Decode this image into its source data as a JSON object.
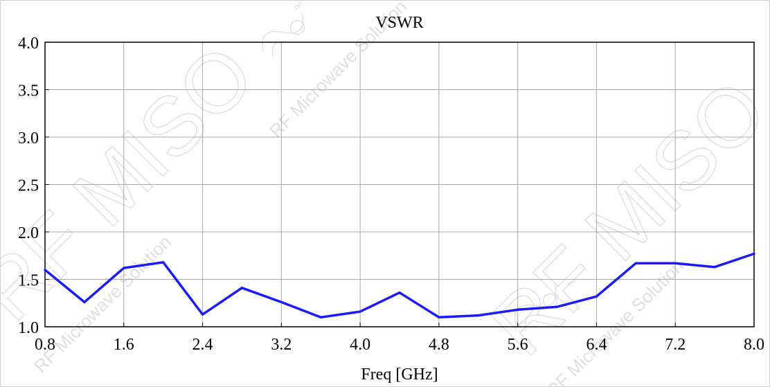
{
  "chart_data": {
    "type": "line",
    "title": "VSWR",
    "xlabel": "Freq [GHz]",
    "ylabel": "",
    "xlim": [
      0.8,
      8.0
    ],
    "ylim": [
      1.0,
      4.0
    ],
    "xticks": [
      "0.8",
      "1.6",
      "2.4",
      "3.2",
      "4.0",
      "4.8",
      "5.6",
      "6.4",
      "7.2",
      "8.0"
    ],
    "yticks": [
      "1.0",
      "1.5",
      "2.0",
      "2.5",
      "3.0",
      "3.5",
      "4.0"
    ],
    "grid": true,
    "series": [
      {
        "color": "#1a1aff",
        "x": [
          0.8,
          1.2,
          1.6,
          2.0,
          2.4,
          2.8,
          3.2,
          3.6,
          4.0,
          4.4,
          4.8,
          5.2,
          5.6,
          6.0,
          6.4,
          6.8,
          7.2,
          7.6,
          8.0
        ],
        "y": [
          1.6,
          1.26,
          1.62,
          1.68,
          1.13,
          1.41,
          1.26,
          1.1,
          1.16,
          1.36,
          1.1,
          1.12,
          1.18,
          1.21,
          1.32,
          1.67,
          1.67,
          1.63,
          1.77
        ]
      }
    ]
  },
  "watermark": {
    "brand": "RF MISO",
    "tagline": "RF Microwave Solution",
    "trademark": "™"
  }
}
